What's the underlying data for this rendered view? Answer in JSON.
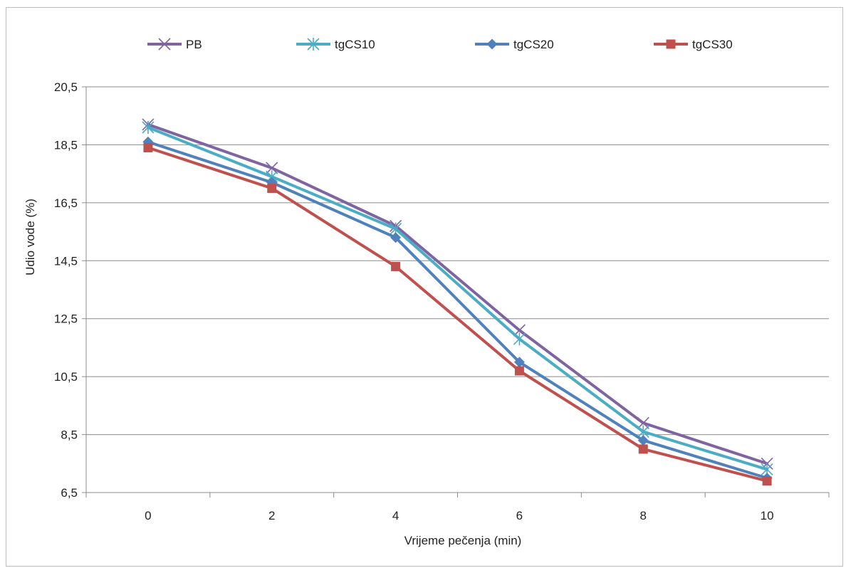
{
  "chart_data": {
    "type": "line",
    "title": "",
    "xlabel": "Vrijeme pečenja (min)",
    "ylabel": "Udio vode (%)",
    "x": [
      0,
      2,
      4,
      6,
      8,
      10
    ],
    "x_tick_labels": [
      "0",
      "2",
      "4",
      "6",
      "8",
      "10"
    ],
    "ylim": [
      6.5,
      20.5
    ],
    "y_ticks": [
      6.5,
      8.5,
      10.5,
      12.5,
      14.5,
      16.5,
      18.5,
      20.5
    ],
    "y_tick_labels": [
      "6,5",
      "8,5",
      "10,5",
      "12,5",
      "14,5",
      "16,5",
      "18,5",
      "20,5"
    ],
    "grid": "horizontal",
    "legend_position": "top",
    "series": [
      {
        "name": "PB",
        "color": "#8064a2",
        "marker": "x",
        "values": [
          19.2,
          17.7,
          15.7,
          12.1,
          8.9,
          7.5
        ]
      },
      {
        "name": "tgCS10",
        "color": "#4bacc6",
        "marker": "star",
        "values": [
          19.1,
          17.4,
          15.6,
          11.8,
          8.6,
          7.3
        ]
      },
      {
        "name": "tgCS20",
        "color": "#4f81bd",
        "marker": "diamond",
        "values": [
          18.6,
          17.2,
          15.3,
          11.0,
          8.3,
          7.0
        ]
      },
      {
        "name": "tgCS30",
        "color": "#c0504d",
        "marker": "square",
        "values": [
          18.4,
          17.0,
          14.3,
          10.7,
          8.0,
          6.9
        ]
      }
    ]
  }
}
